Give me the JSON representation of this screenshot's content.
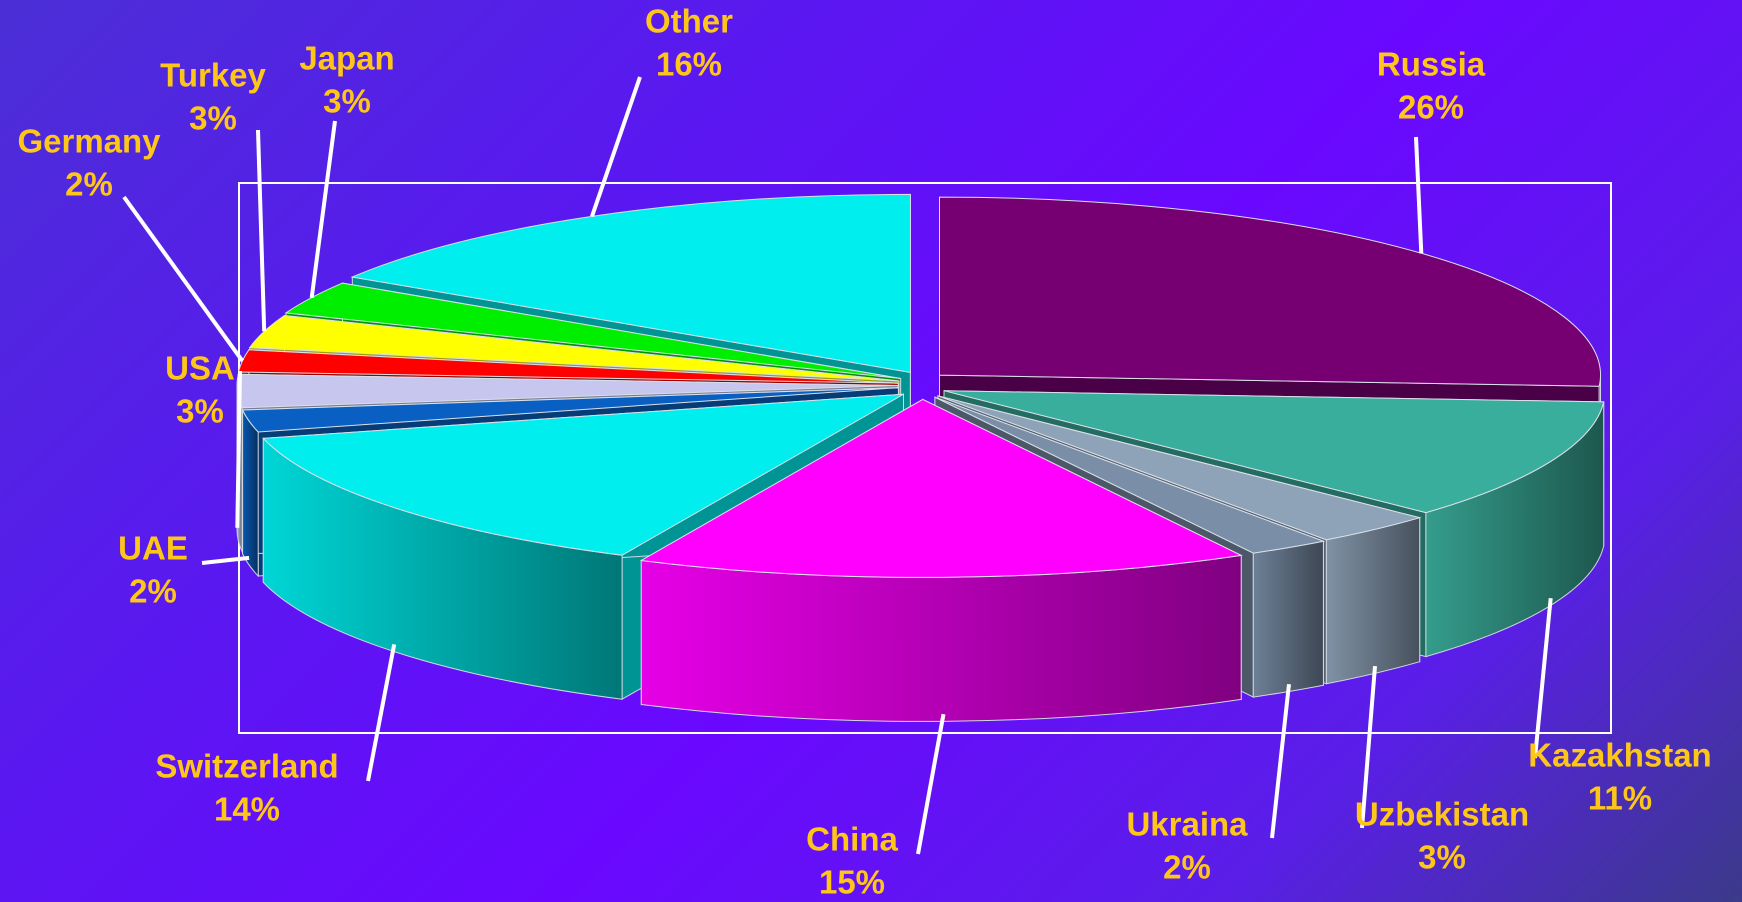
{
  "chart_data": {
    "type": "pie3d",
    "categories": [
      "Russia",
      "Kazakhstan",
      "Uzbekistan",
      "Ukraina",
      "China",
      "Switzerland",
      "UAE",
      "USA",
      "Germany",
      "Turkey",
      "Japan",
      "Other"
    ],
    "values": [
      26,
      11,
      3,
      2,
      15,
      14,
      2,
      3,
      2,
      3,
      3,
      16
    ],
    "value_labels": [
      "26%",
      "11%",
      "3%",
      "2%",
      "15%",
      "14%",
      "2%",
      "3%",
      "2%",
      "3%",
      "3%",
      "16%"
    ],
    "colors": [
      "#760072",
      "#3aae9c",
      "#8ea2b8",
      "#7a8ea8",
      "#ff00ff",
      "#00eeee",
      "#0a60c2",
      "#c6c6ee",
      "#ff0000",
      "#ffff00",
      "#00ee00",
      "#00eeee"
    ]
  }
}
